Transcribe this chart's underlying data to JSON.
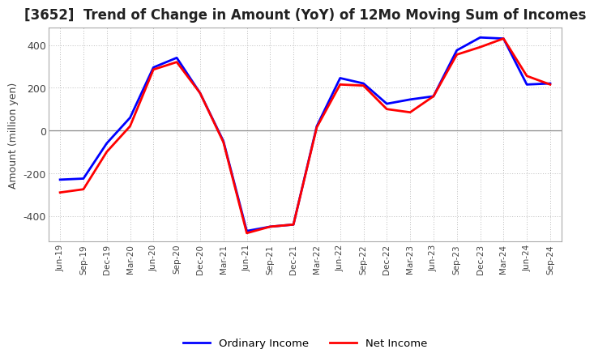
{
  "title": "[3652]  Trend of Change in Amount (YoY) of 12Mo Moving Sum of Incomes",
  "ylabel": "Amount (million yen)",
  "x_labels": [
    "Jun-19",
    "Sep-19",
    "Dec-19",
    "Mar-20",
    "Jun-20",
    "Sep-20",
    "Dec-20",
    "Mar-21",
    "Jun-21",
    "Sep-21",
    "Dec-21",
    "Mar-22",
    "Jun-22",
    "Sep-22",
    "Dec-22",
    "Mar-23",
    "Jun-23",
    "Sep-23",
    "Dec-23",
    "Mar-24",
    "Jun-24",
    "Sep-24"
  ],
  "ordinary_income": [
    -230,
    -225,
    -60,
    60,
    295,
    340,
    175,
    -50,
    -470,
    -450,
    -440,
    20,
    245,
    220,
    125,
    145,
    160,
    375,
    435,
    430,
    215,
    220
  ],
  "net_income": [
    -290,
    -275,
    -100,
    20,
    285,
    320,
    175,
    -55,
    -480,
    -450,
    -440,
    15,
    215,
    210,
    100,
    85,
    160,
    355,
    390,
    430,
    255,
    215
  ],
  "ordinary_income_color": "#0000FF",
  "net_income_color": "#FF0000",
  "line_width": 2.0,
  "ylim": [
    -520,
    480
  ],
  "yticks": [
    -400,
    -200,
    0,
    200,
    400
  ],
  "background_color": "#FFFFFF",
  "plot_bg_color": "#FFFFFF",
  "grid_color": "#BBBBBB",
  "border_color": "#AAAAAA",
  "title_fontsize": 12,
  "tick_label_color": "#444444",
  "legend_labels": [
    "Ordinary Income",
    "Net Income"
  ]
}
